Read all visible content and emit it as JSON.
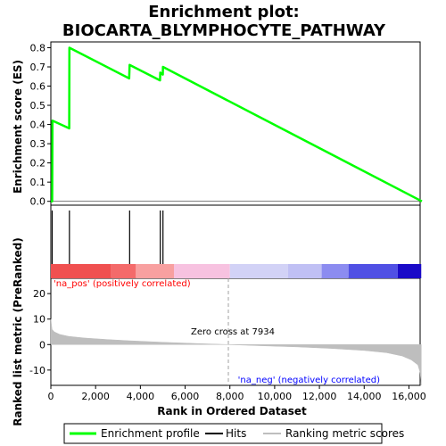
{
  "chart_data": {
    "type": "line",
    "title_line1": "Enrichment plot:",
    "title_line2": "BIOCARTA_BLYMPHOCYTE_PATHWAY",
    "top_ylabel": "Enrichment score (ES)",
    "bottom_ylabel": "Ranked list metric (PreRanked)",
    "xlabel": "Rank in Ordered Dataset",
    "xlim": [
      0,
      16500
    ],
    "es_ylim": [
      -0.02,
      0.83
    ],
    "es_ticks": [
      "0.0",
      "0.1",
      "0.2",
      "0.3",
      "0.4",
      "0.5",
      "0.6",
      "0.7",
      "0.8"
    ],
    "es_tick_values": [
      0,
      0.1,
      0.2,
      0.3,
      0.4,
      0.5,
      0.6,
      0.7,
      0.8
    ],
    "metric_ylim": [
      -16,
      26
    ],
    "metric_ticks": [
      "-10",
      "0",
      "10",
      "20"
    ],
    "metric_tick_values": [
      -10,
      0,
      10,
      20
    ],
    "x_ticks": [
      "0",
      "2,000",
      "4,000",
      "6,000",
      "8,000",
      "10,000",
      "12,000",
      "14,000",
      "16,000"
    ],
    "x_tick_values": [
      0,
      2000,
      4000,
      6000,
      8000,
      10000,
      12000,
      14000,
      16000
    ],
    "enrichment_profile": {
      "x": [
        0,
        60,
        70,
        820,
        830,
        3500,
        3520,
        4880,
        4890,
        5000,
        5010,
        16580
      ],
      "y": [
        0.0,
        0.0,
        0.42,
        0.38,
        0.8,
        0.64,
        0.71,
        0.63,
        0.67,
        0.66,
        0.7,
        0.0
      ]
    },
    "hits": [
      60,
      830,
      3520,
      4890,
      5010
    ],
    "zero_cross_rank": 7934,
    "zero_cross_label": "Zero cross at 7934",
    "pos_label": "'na_pos' (positively correlated)",
    "neg_label": "'na_neg' (negatively correlated)",
    "metric_curve": {
      "x": [
        0,
        50,
        150,
        400,
        800,
        1500,
        2500,
        3500,
        5000,
        6500,
        7934,
        9500,
        11000,
        12500,
        14000,
        15000,
        15700,
        16100,
        16400,
        16500,
        16550
      ],
      "y": [
        10,
        6,
        5,
        4,
        3.2,
        2.6,
        2,
        1.5,
        0.9,
        0.4,
        0,
        -0.5,
        -0.9,
        -1.5,
        -2.3,
        -3.2,
        -4.5,
        -6,
        -8,
        -11,
        -16
      ]
    },
    "heatmap_segments": [
      {
        "from": 0,
        "to": 2700,
        "color": "#f05050"
      },
      {
        "from": 2700,
        "to": 3800,
        "color": "#f46a6a"
      },
      {
        "from": 3800,
        "to": 5500,
        "color": "#f8a0a0"
      },
      {
        "from": 5500,
        "to": 8000,
        "color": "#f7c2e0"
      },
      {
        "from": 8000,
        "to": 10600,
        "color": "#d2d2f6"
      },
      {
        "from": 10600,
        "to": 12100,
        "color": "#c0c0f4"
      },
      {
        "from": 12100,
        "to": 13300,
        "color": "#8c8cf0"
      },
      {
        "from": 13300,
        "to": 15500,
        "color": "#5050e4"
      },
      {
        "from": 15500,
        "to": 16550,
        "color": "#1a0ac8"
      }
    ],
    "legend": [
      "Enrichment profile",
      "Hits",
      "Ranking metric scores"
    ],
    "colors": {
      "profile": "#00ff00",
      "hits": "#000000",
      "metric": "#bebebe",
      "pos": "#ff0000",
      "neg": "#0000ff"
    }
  }
}
